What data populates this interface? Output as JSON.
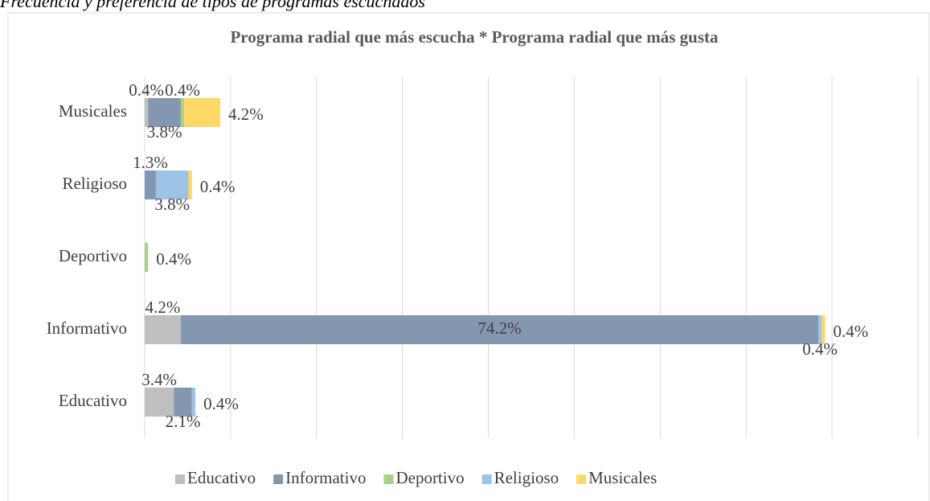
{
  "caption": "Frecuencia y preferencia de tipos de programas escuchados",
  "chart_data": {
    "type": "stacked_barh",
    "title": "Programa radial que más escucha * Programa radial que más gusta",
    "categories": [
      "Educativo",
      "Informativo",
      "Deportivo",
      "Religioso",
      "Musicales"
    ],
    "series": [
      {
        "name": "Educativo",
        "color": "#bfbfbf",
        "values": [
          3.4,
          4.2,
          null,
          null,
          0.4
        ],
        "value_labels": [
          "3.4%",
          "4.2%",
          null,
          null,
          "0.4%"
        ]
      },
      {
        "name": "Informativo",
        "color": "#8497b0",
        "values": [
          2.1,
          74.2,
          null,
          1.3,
          3.8
        ],
        "value_labels": [
          "2.1%",
          "74.2%",
          null,
          "1.3%",
          "3.8%"
        ]
      },
      {
        "name": "Deportivo",
        "color": "#a9d18e",
        "values": [
          null,
          null,
          0.4,
          null,
          0.4
        ],
        "value_labels": [
          null,
          null,
          "0.4%",
          null,
          "0.4%"
        ]
      },
      {
        "name": "Religioso",
        "color": "#9dc3e6",
        "values": [
          0.4,
          0.4,
          null,
          3.8,
          null
        ],
        "value_labels": [
          "0.4%",
          "0.4%",
          null,
          "3.8%",
          null
        ]
      },
      {
        "name": "Musicales",
        "color": "#ffd966",
        "values": [
          null,
          0.4,
          null,
          0.4,
          4.2
        ],
        "value_labels": [
          null,
          "0.4%",
          null,
          "0.4%",
          "4.2%"
        ]
      }
    ],
    "xlim": [
      0,
      90
    ],
    "xticks": [
      0,
      10,
      20,
      30,
      40,
      50,
      60,
      70,
      80,
      90
    ],
    "grid": true,
    "legend": "bottom"
  }
}
